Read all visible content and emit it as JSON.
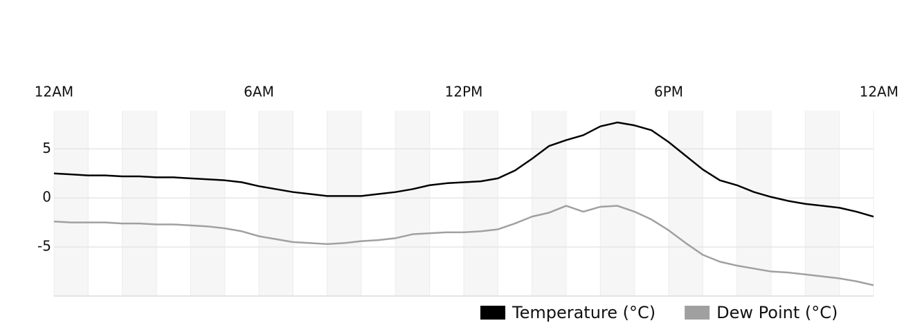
{
  "chart_data": {
    "type": "line",
    "x": [
      0,
      0.5,
      1,
      1.5,
      2,
      2.5,
      3,
      3.5,
      4,
      4.5,
      5,
      5.5,
      6,
      6.5,
      7,
      7.5,
      8,
      8.5,
      9,
      9.5,
      10,
      10.5,
      11,
      11.5,
      12,
      12.5,
      13,
      13.5,
      14,
      14.5,
      15,
      15.5,
      16,
      16.5,
      17,
      17.5,
      18,
      18.5,
      19,
      19.5,
      20,
      20.5,
      21,
      21.5,
      22,
      22.5,
      23,
      23.5,
      24
    ],
    "series": [
      {
        "name": "Temperature (°C)",
        "color": "#000000",
        "values": [
          2.5,
          2.4,
          2.3,
          2.3,
          2.2,
          2.2,
          2.1,
          2.1,
          2.0,
          1.9,
          1.8,
          1.6,
          1.2,
          0.9,
          0.6,
          0.4,
          0.2,
          0.2,
          0.2,
          0.4,
          0.6,
          0.9,
          1.3,
          1.5,
          1.6,
          1.7,
          2.0,
          2.8,
          4.0,
          5.3,
          5.9,
          6.4,
          7.3,
          7.7,
          7.4,
          6.9,
          5.7,
          4.3,
          2.9,
          1.8,
          1.3,
          0.6,
          0.1,
          -0.3,
          -0.6,
          -0.8,
          -1.0,
          -1.4,
          -1.9
        ]
      },
      {
        "name": "Dew Point (°C)",
        "color": "#a0a0a0",
        "values": [
          -2.4,
          -2.5,
          -2.5,
          -2.5,
          -2.6,
          -2.6,
          -2.7,
          -2.7,
          -2.8,
          -2.9,
          -3.1,
          -3.4,
          -3.9,
          -4.2,
          -4.5,
          -4.6,
          -4.7,
          -4.6,
          -4.4,
          -4.3,
          -4.1,
          -3.7,
          -3.6,
          -3.5,
          -3.5,
          -3.4,
          -3.2,
          -2.6,
          -1.9,
          -1.5,
          -0.8,
          -1.4,
          -0.9,
          -0.8,
          -1.4,
          -2.2,
          -3.3,
          -4.6,
          -5.8,
          -6.5,
          -6.9,
          -7.2,
          -7.5,
          -7.6,
          -7.8,
          -8.0,
          -8.2,
          -8.5,
          -8.9
        ]
      }
    ],
    "xlim": [
      0,
      24
    ],
    "xticks": [
      {
        "value": 0,
        "label": "12AM"
      },
      {
        "value": 6,
        "label": "6AM"
      },
      {
        "value": 12,
        "label": "12PM"
      },
      {
        "value": 18,
        "label": "6PM"
      },
      {
        "value": 24,
        "label": "12AM"
      }
    ],
    "ylim": [
      -10,
      8.9
    ],
    "yticks": [
      -5,
      0,
      5
    ],
    "grid": true,
    "legend": "bottom-right"
  }
}
